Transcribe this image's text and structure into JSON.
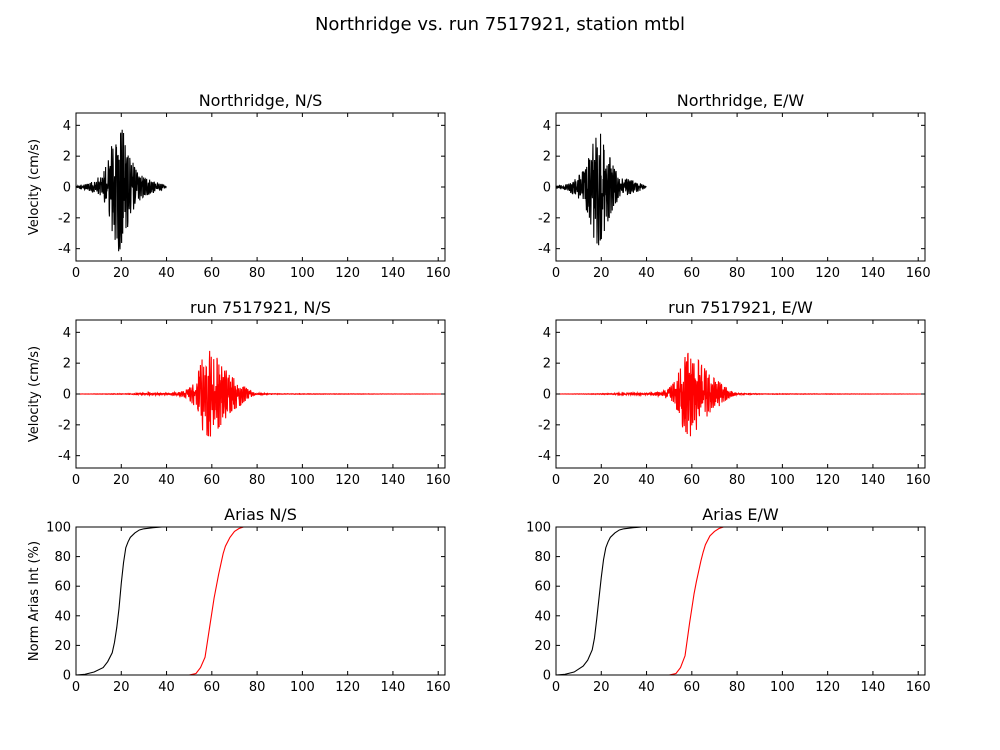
{
  "figure_title": "Northridge vs. run 7517921, station mtbl",
  "chart_data": [
    {
      "id": "nr_ns",
      "type": "line",
      "title": "Northridge, N/S",
      "ylabel": "Velocity (cm/s)",
      "xlim": [
        0,
        163
      ],
      "ylim": [
        -4.8,
        4.8
      ],
      "xticks": [
        0,
        20,
        40,
        60,
        80,
        100,
        120,
        140,
        160
      ],
      "yticks": [
        -4,
        -2,
        0,
        2,
        4
      ],
      "series": [
        {
          "color": "#000000",
          "kind": "oscillation",
          "x": [
            0,
            5,
            8,
            12,
            15,
            17,
            19,
            21,
            23,
            26,
            30,
            34,
            38,
            40
          ],
          "amp": [
            0.05,
            0.2,
            0.4,
            0.9,
            2.0,
            3.8,
            4.2,
            3.5,
            2.6,
            1.2,
            0.6,
            0.4,
            0.2,
            0.02
          ]
        }
      ]
    },
    {
      "id": "nr_ew",
      "type": "line",
      "title": "Northridge, E/W",
      "ylabel": "",
      "xlim": [
        0,
        163
      ],
      "ylim": [
        -4.8,
        4.8
      ],
      "xticks": [
        0,
        20,
        40,
        60,
        80,
        100,
        120,
        140,
        160
      ],
      "yticks": [
        -4,
        -2,
        0,
        2,
        4
      ],
      "series": [
        {
          "color": "#000000",
          "kind": "oscillation",
          "x": [
            0,
            5,
            8,
            12,
            15,
            17,
            19,
            21,
            23,
            26,
            30,
            34,
            38,
            40
          ],
          "amp": [
            0.05,
            0.2,
            0.5,
            1.0,
            2.2,
            3.5,
            3.8,
            3.0,
            2.2,
            1.1,
            0.6,
            0.4,
            0.2,
            0.02
          ]
        }
      ]
    },
    {
      "id": "run_ns",
      "type": "line",
      "title": "run 7517921, N/S",
      "ylabel": "Velocity (cm/s)",
      "xlim": [
        0,
        163
      ],
      "ylim": [
        -4.8,
        4.8
      ],
      "xticks": [
        0,
        20,
        40,
        60,
        80,
        100,
        120,
        140,
        160
      ],
      "yticks": [
        -4,
        -2,
        0,
        2,
        4
      ],
      "series": [
        {
          "color": "#ff0000",
          "kind": "oscillation",
          "x": [
            0,
            25,
            32,
            40,
            47,
            50,
            53,
            56,
            59,
            61,
            64,
            68,
            72,
            76,
            80,
            90,
            163
          ],
          "amp": [
            0.0,
            0.03,
            0.08,
            0.05,
            0.15,
            0.4,
            0.9,
            2.4,
            2.8,
            2.6,
            2.0,
            1.2,
            0.8,
            0.3,
            0.05,
            0.02,
            0.0
          ]
        }
      ]
    },
    {
      "id": "run_ew",
      "type": "line",
      "title": "run 7517921, E/W",
      "ylabel": "",
      "xlim": [
        0,
        163
      ],
      "ylim": [
        -4.8,
        4.8
      ],
      "xticks": [
        0,
        20,
        40,
        60,
        80,
        100,
        120,
        140,
        160
      ],
      "yticks": [
        -4,
        -2,
        0,
        2,
        4
      ],
      "series": [
        {
          "color": "#ff0000",
          "kind": "oscillation",
          "x": [
            0,
            25,
            32,
            40,
            47,
            50,
            53,
            56,
            59,
            61,
            64,
            68,
            72,
            76,
            80,
            90,
            163
          ],
          "amp": [
            0.0,
            0.03,
            0.08,
            0.05,
            0.15,
            0.4,
            0.9,
            2.2,
            2.8,
            2.5,
            2.0,
            1.2,
            0.8,
            0.3,
            0.05,
            0.02,
            0.0
          ]
        }
      ]
    },
    {
      "id": "arias_ns",
      "type": "line",
      "title": "Arias N/S",
      "ylabel": "Norm Arias Int (%)",
      "xlim": [
        0,
        163
      ],
      "ylim": [
        0,
        100
      ],
      "xticks": [
        0,
        20,
        40,
        60,
        80,
        100,
        120,
        140,
        160
      ],
      "yticks": [
        0,
        20,
        40,
        60,
        80,
        100
      ],
      "series": [
        {
          "color": "#000000",
          "x": [
            0,
            4,
            8,
            12,
            14,
            16,
            17,
            18,
            19,
            20,
            21,
            22,
            23,
            24,
            26,
            28,
            30,
            34,
            38
          ],
          "y": [
            0,
            0.5,
            2,
            5,
            9,
            15,
            22,
            32,
            45,
            62,
            76,
            86,
            90,
            93,
            96,
            98,
            98.8,
            99.5,
            100
          ]
        },
        {
          "color": "#ff0000",
          "x": [
            0,
            40,
            50,
            53,
            55,
            57,
            58,
            59,
            60,
            61,
            62,
            63,
            64,
            65,
            66,
            68,
            70,
            72,
            74,
            163
          ],
          "y": [
            0,
            0,
            0,
            1,
            5,
            12,
            22,
            32,
            42,
            52,
            60,
            68,
            75,
            82,
            87,
            93,
            97,
            99,
            100,
            100
          ]
        }
      ]
    },
    {
      "id": "arias_ew",
      "type": "line",
      "title": "Arias E/W",
      "ylabel": "",
      "xlim": [
        0,
        163
      ],
      "ylim": [
        0,
        100
      ],
      "xticks": [
        0,
        20,
        40,
        60,
        80,
        100,
        120,
        140,
        160
      ],
      "yticks": [
        0,
        20,
        40,
        60,
        80,
        100
      ],
      "series": [
        {
          "color": "#000000",
          "x": [
            0,
            4,
            8,
            12,
            14,
            16,
            17,
            18,
            19,
            20,
            21,
            22,
            23,
            24,
            26,
            28,
            30,
            34,
            38
          ],
          "y": [
            0,
            0.5,
            2,
            6,
            10,
            17,
            25,
            38,
            52,
            66,
            78,
            86,
            90,
            93,
            96,
            98,
            98.8,
            99.5,
            100
          ]
        },
        {
          "color": "#ff0000",
          "x": [
            0,
            40,
            50,
            53,
            55,
            57,
            58,
            59,
            60,
            61,
            62,
            63,
            64,
            65,
            66,
            68,
            70,
            72,
            74,
            163
          ],
          "y": [
            0,
            0,
            0,
            1,
            5,
            13,
            24,
            35,
            45,
            55,
            63,
            70,
            77,
            83,
            88,
            94,
            97,
            99,
            100,
            100
          ]
        }
      ]
    }
  ]
}
